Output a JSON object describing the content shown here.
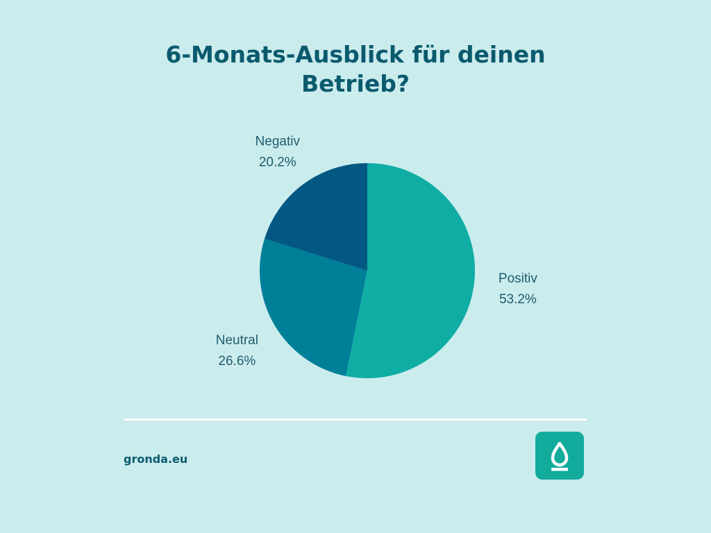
{
  "title": {
    "line1": "6-Monats-Ausblick für deinen",
    "line2": "Betrieb?"
  },
  "chart_data": {
    "type": "pie",
    "title": "6-Monats-Ausblick für deinen Betrieb?",
    "slices": [
      {
        "label": "Positiv",
        "value": 53.2,
        "display": "53.2%",
        "color": "#0fada4"
      },
      {
        "label": "Neutral",
        "value": 26.6,
        "display": "26.6%",
        "color": "#007f98"
      },
      {
        "label": "Negativ",
        "value": 20.2,
        "display": "20.2%",
        "color": "#025883"
      }
    ],
    "start": "12 o'clock",
    "direction": "clockwise"
  },
  "footer": {
    "website": "gronda.eu",
    "logo_icon": "drop-icon",
    "logo_color": "#12ab9c"
  }
}
